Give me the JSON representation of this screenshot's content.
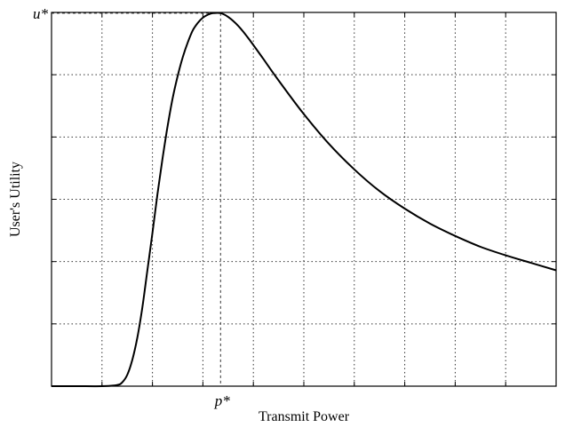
{
  "chart_data": {
    "type": "line",
    "title": "",
    "xlabel": "Transmit Power",
    "ylabel": "User's Utility",
    "xlim": [
      0,
      10
    ],
    "ylim": [
      0,
      1
    ],
    "grid": true,
    "grid_style": "dotted",
    "x_ticks": [
      1,
      2,
      3,
      4,
      5,
      6,
      7,
      8,
      9
    ],
    "y_ticks": [
      0.1667,
      0.3333,
      0.5,
      0.6667,
      0.8333
    ],
    "annotations": [
      {
        "label": "u*",
        "axis": "y",
        "value": 0.998
      },
      {
        "label": "p*",
        "axis": "x",
        "value": 3.35
      }
    ],
    "series": [
      {
        "color": "#000000",
        "x": [
          0,
          0.5,
          1.0,
          1.3,
          1.4,
          1.5,
          1.6,
          1.7,
          1.8,
          1.9,
          2.0,
          2.1,
          2.2,
          2.3,
          2.4,
          2.5,
          2.6,
          2.7,
          2.8,
          2.9,
          3.0,
          3.1,
          3.2,
          3.35,
          3.5,
          3.7,
          3.9,
          4.2,
          4.5,
          5.0,
          5.5,
          6.0,
          6.5,
          7.0,
          7.5,
          8.0,
          8.5,
          9.0,
          9.5,
          10.0
        ],
        "y": [
          0.0,
          0.0,
          0.0,
          0.003,
          0.01,
          0.03,
          0.07,
          0.13,
          0.21,
          0.31,
          0.41,
          0.515,
          0.61,
          0.695,
          0.77,
          0.83,
          0.88,
          0.92,
          0.952,
          0.972,
          0.986,
          0.994,
          0.998,
          0.998,
          0.988,
          0.964,
          0.931,
          0.875,
          0.818,
          0.728,
          0.648,
          0.58,
          0.522,
          0.475,
          0.435,
          0.402,
          0.373,
          0.35,
          0.33,
          0.31
        ]
      }
    ]
  }
}
